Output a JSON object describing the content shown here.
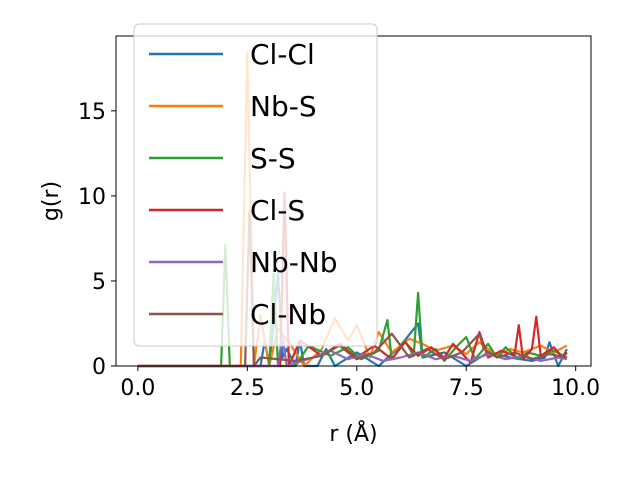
{
  "chart_data": {
    "type": "line",
    "xlabel": "r (Å)",
    "ylabel": "g(r)",
    "xlim": [
      -0.5,
      10.35
    ],
    "ylim": [
      0,
      19.4
    ],
    "xticks": [
      {
        "value": 0.0,
        "label": "0.0"
      },
      {
        "value": 2.5,
        "label": "2.5"
      },
      {
        "value": 5.0,
        "label": "5.0"
      },
      {
        "value": 7.5,
        "label": "7.5"
      },
      {
        "value": 10.0,
        "label": "10.0"
      }
    ],
    "yticks": [
      {
        "value": 0,
        "label": "0"
      },
      {
        "value": 5,
        "label": "5"
      },
      {
        "value": 10,
        "label": "10"
      },
      {
        "value": 15,
        "label": "15"
      }
    ],
    "grid": false,
    "legend_position": "upper-left",
    "series": [
      {
        "name": "Cl-Cl",
        "color": "#1f77b4",
        "x": [
          0.0,
          2.8,
          2.9,
          3.0,
          3.1,
          3.2,
          3.3,
          3.4,
          3.6,
          3.7,
          3.8,
          4.1,
          4.3,
          4.5,
          5.0,
          5.5,
          6.0,
          6.4,
          6.5,
          7.0,
          7.5,
          8.0,
          8.5,
          9.0,
          9.3,
          9.4,
          9.6,
          9.8
        ],
        "values": [
          0,
          0,
          1.5,
          0,
          2.5,
          5.5,
          0.5,
          1.0,
          0,
          1.5,
          0,
          0,
          1.0,
          0,
          0.8,
          0,
          1.2,
          2.5,
          0.5,
          0.8,
          0,
          0.8,
          0.5,
          0.3,
          0.5,
          1.4,
          0,
          1.0
        ]
      },
      {
        "name": "Nb-S",
        "color": "#ff7f0e",
        "x": [
          0.0,
          2.35,
          2.5,
          2.65,
          2.8,
          3.0,
          3.2,
          3.5,
          3.8,
          4.2,
          4.5,
          4.8,
          5.0,
          5.3,
          5.5,
          5.8,
          6.2,
          6.5,
          6.8,
          7.2,
          7.5,
          7.8,
          8.2,
          8.5,
          8.8,
          9.2,
          9.5,
          9.8
        ],
        "values": [
          0,
          0,
          18.4,
          0,
          3.0,
          0,
          2.2,
          1.2,
          0,
          1.0,
          2.8,
          1.5,
          2.4,
          0.5,
          2.0,
          0.8,
          1.6,
          1.3,
          0.9,
          1.2,
          0.7,
          1.4,
          0.6,
          1.0,
          0.8,
          1.2,
          0.8,
          1.2
        ]
      },
      {
        "name": "S-S",
        "color": "#2ca02c",
        "x": [
          0.0,
          1.9,
          2.0,
          2.1,
          3.0,
          3.1,
          3.2,
          3.6,
          3.9,
          4.4,
          4.8,
          5.1,
          5.5,
          5.7,
          5.8,
          6.1,
          6.3,
          6.4,
          6.5,
          6.8,
          7.0,
          7.3,
          7.5,
          7.7,
          8.0,
          8.2,
          8.4,
          8.7,
          8.9,
          9.2,
          9.5,
          9.8
        ],
        "values": [
          0,
          0,
          7.1,
          0,
          0,
          5.4,
          0,
          0,
          1.2,
          0.6,
          1.1,
          0.4,
          0.9,
          2.7,
          0.4,
          1.5,
          0.6,
          4.3,
          0.5,
          1.0,
          0.3,
          1.2,
          1.7,
          0.4,
          1.3,
          0.5,
          1.1,
          0.4,
          0.8,
          0.6,
          0.9,
          0.5
        ]
      },
      {
        "name": "Cl-S",
        "color": "#d62728",
        "x": [
          0.0,
          3.25,
          3.35,
          3.45,
          3.7,
          4.2,
          4.6,
          5.0,
          5.4,
          5.8,
          6.1,
          6.4,
          6.7,
          7.0,
          7.2,
          7.6,
          7.8,
          8.0,
          8.3,
          8.6,
          8.7,
          8.8,
          9.0,
          9.1,
          9.2,
          9.5,
          9.7,
          9.8
        ],
        "values": [
          0,
          0,
          10.2,
          0,
          1.5,
          0.6,
          1.3,
          0.5,
          1.2,
          0.4,
          1.4,
          0.6,
          1.1,
          0.5,
          1.3,
          0.2,
          2.0,
          0.5,
          0.9,
          0.6,
          2.4,
          0.4,
          1.0,
          2.9,
          0.6,
          1.1,
          0.5,
          0.8
        ]
      },
      {
        "name": "Nb-Nb",
        "color": "#9467bd",
        "x": [
          0.0,
          3.2,
          3.3,
          3.4,
          4.0,
          4.4,
          4.8,
          5.2,
          5.6,
          6.0,
          6.4,
          6.8,
          7.2,
          7.6,
          8.0,
          8.4,
          8.8,
          9.2,
          9.6,
          9.8
        ],
        "values": [
          0,
          0,
          1.8,
          0,
          0.5,
          0.9,
          0.4,
          0.7,
          0.3,
          0.5,
          0.8,
          0.4,
          0.6,
          0.3,
          0.7,
          0.4,
          0.6,
          0.3,
          0.5,
          0.4
        ]
      },
      {
        "name": "Cl-Nb",
        "color": "#8c564b",
        "x": [
          0.0,
          2.45,
          2.55,
          2.65,
          2.8,
          3.6,
          4.2,
          4.6,
          5.0,
          5.4,
          5.8,
          6.2,
          6.6,
          7.0,
          7.4,
          7.8,
          7.9,
          8.2,
          8.6,
          9.0,
          9.4,
          9.8
        ],
        "values": [
          0,
          0,
          9.1,
          0,
          0.5,
          0.3,
          0.6,
          1.2,
          0.4,
          0.8,
          1.9,
          0.5,
          1.0,
          0.4,
          0.8,
          1.9,
          1.0,
          0.5,
          0.8,
          0.4,
          0.7,
          0.5
        ]
      }
    ]
  }
}
